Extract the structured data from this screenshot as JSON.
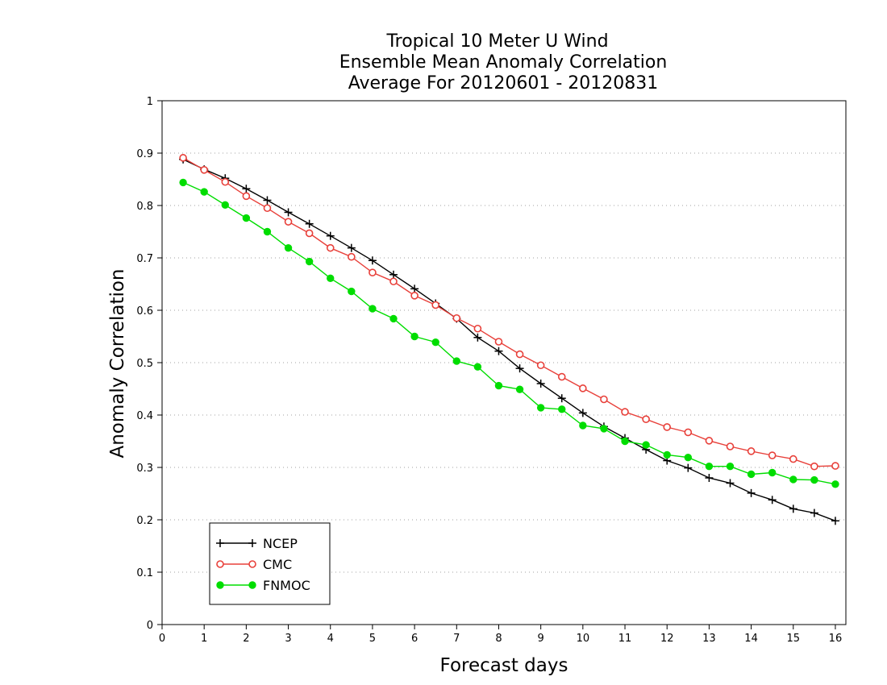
{
  "chart_data": {
    "type": "line",
    "title_lines": [
      "Tropical 10 Meter U Wind",
      "Ensemble Mean Anomaly Correlation",
      "Average For 20120601 - 20120831"
    ],
    "xlabel": "Forecast days",
    "ylabel": "Anomaly Correlation",
    "xlim": [
      0,
      16.25
    ],
    "ylim": [
      0,
      1
    ],
    "x_ticks": [
      0,
      1,
      2,
      3,
      4,
      5,
      6,
      7,
      8,
      9,
      10,
      11,
      12,
      13,
      14,
      15,
      16
    ],
    "y_ticks": [
      0,
      0.1,
      0.2,
      0.3,
      0.4,
      0.5,
      0.6,
      0.7,
      0.8,
      0.9,
      1
    ],
    "y_tick_labels": [
      "0",
      "0.1",
      "0.2",
      "0.3",
      "0.4",
      "0.5",
      "0.6",
      "0.7",
      "0.8",
      "0.9",
      "1"
    ],
    "grid": "horizontal dotted",
    "legend_position": "bottom-left",
    "x": [
      0.5,
      1,
      1.5,
      2,
      2.5,
      3,
      3.5,
      4,
      4.5,
      5,
      5.5,
      6,
      6.5,
      7,
      7.5,
      8,
      8.5,
      9,
      9.5,
      10,
      10.5,
      11,
      11.5,
      12,
      12.5,
      13,
      13.5,
      14,
      14.5,
      15,
      15.5,
      16
    ],
    "series": [
      {
        "name": "NCEP",
        "color": "#000000",
        "marker": "plus",
        "values": [
          0.888,
          0.869,
          0.852,
          0.832,
          0.81,
          0.787,
          0.765,
          0.742,
          0.719,
          0.695,
          0.668,
          0.641,
          0.613,
          0.584,
          0.548,
          0.522,
          0.489,
          0.46,
          0.432,
          0.404,
          0.378,
          0.356,
          0.334,
          0.313,
          0.299,
          0.28,
          0.27,
          0.251,
          0.238,
          0.221,
          0.213,
          0.198
        ]
      },
      {
        "name": "CMC",
        "color": "#e8403a",
        "marker": "open-circle",
        "values": [
          0.891,
          0.868,
          0.845,
          0.818,
          0.795,
          0.769,
          0.747,
          0.719,
          0.702,
          0.672,
          0.655,
          0.628,
          0.61,
          0.585,
          0.565,
          0.54,
          0.516,
          0.495,
          0.473,
          0.451,
          0.43,
          0.406,
          0.392,
          0.377,
          0.367,
          0.351,
          0.34,
          0.331,
          0.323,
          0.316,
          0.302,
          0.303
        ]
      },
      {
        "name": "FNMOC",
        "color": "#00dd00",
        "marker": "filled-circle",
        "values": [
          0.844,
          0.826,
          0.801,
          0.776,
          0.75,
          0.719,
          0.693,
          0.661,
          0.636,
          0.603,
          0.584,
          0.55,
          0.539,
          0.503,
          0.492,
          0.456,
          0.449,
          0.414,
          0.411,
          0.38,
          0.374,
          0.35,
          0.343,
          0.324,
          0.319,
          0.302,
          0.302,
          0.287,
          0.29,
          0.277,
          0.276,
          0.268
        ]
      }
    ]
  }
}
